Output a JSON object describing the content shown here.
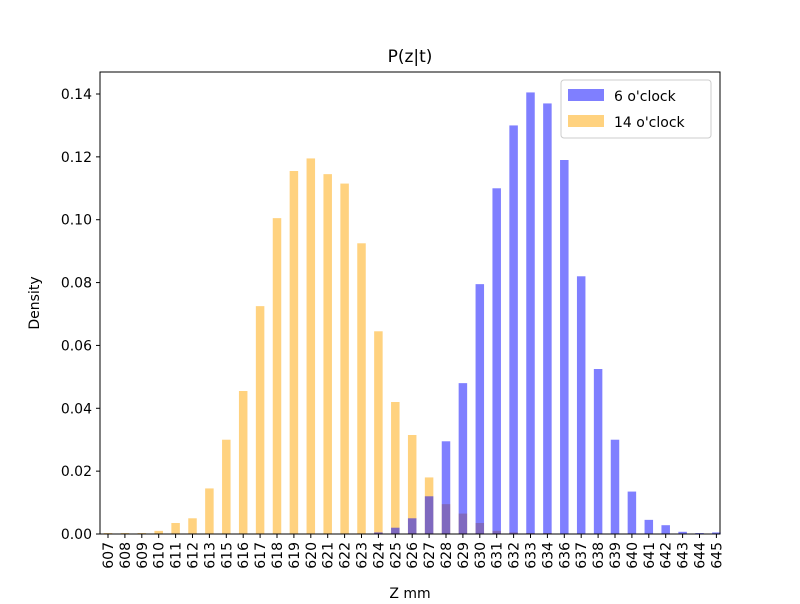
{
  "chart_data": {
    "type": "bar",
    "title": "P(z|t)",
    "xlabel": "Z mm",
    "ylabel": "Density",
    "categories": [
      "607",
      "608",
      "609",
      "610",
      "611",
      "612",
      "613",
      "615",
      "616",
      "617",
      "618",
      "619",
      "620",
      "621",
      "622",
      "623",
      "624",
      "625",
      "626",
      "627",
      "628",
      "629",
      "630",
      "631",
      "632",
      "633",
      "634",
      "636",
      "637",
      "638",
      "639",
      "640",
      "641",
      "642",
      "643",
      "644",
      "645"
    ],
    "ylim": [
      0,
      0.147
    ],
    "yticks": [
      0.0,
      0.02,
      0.04,
      0.06,
      0.08,
      0.1,
      0.12,
      0.14
    ],
    "ytick_labels": [
      "0.00",
      "0.02",
      "0.04",
      "0.06",
      "0.08",
      "0.10",
      "0.12",
      "0.14"
    ],
    "legend_position": "top-right",
    "grid": false,
    "series": [
      {
        "name": "14 o'clock",
        "color": "#ffa500",
        "opacity": 0.5,
        "values": [
          0.0003,
          0.0003,
          0.0003,
          0.001,
          0.0035,
          0.005,
          0.0145,
          0.03,
          0.0455,
          0.0725,
          0.1005,
          0.1155,
          0.1195,
          0.1145,
          0.1115,
          0.0925,
          0.0645,
          0.042,
          0.0315,
          0.018,
          0.0095,
          0.0065,
          0.0035,
          0.001,
          0.0005,
          0.0003,
          0.0003,
          0,
          0,
          0,
          0,
          0,
          0,
          0,
          0,
          0,
          0
        ]
      },
      {
        "name": "6 o'clock",
        "color": "#0000ff",
        "opacity": 0.5,
        "values": [
          0,
          0,
          0,
          0,
          0,
          0,
          0,
          0,
          0,
          0,
          0,
          0,
          0,
          0,
          0,
          0,
          0.0005,
          0.002,
          0.005,
          0.012,
          0.0295,
          0.048,
          0.0795,
          0.11,
          0.13,
          0.1405,
          0.137,
          0.119,
          0.082,
          0.0525,
          0.03,
          0.0135,
          0.0045,
          0.0028,
          0.0007,
          0.0003,
          0.0005
        ]
      }
    ]
  }
}
